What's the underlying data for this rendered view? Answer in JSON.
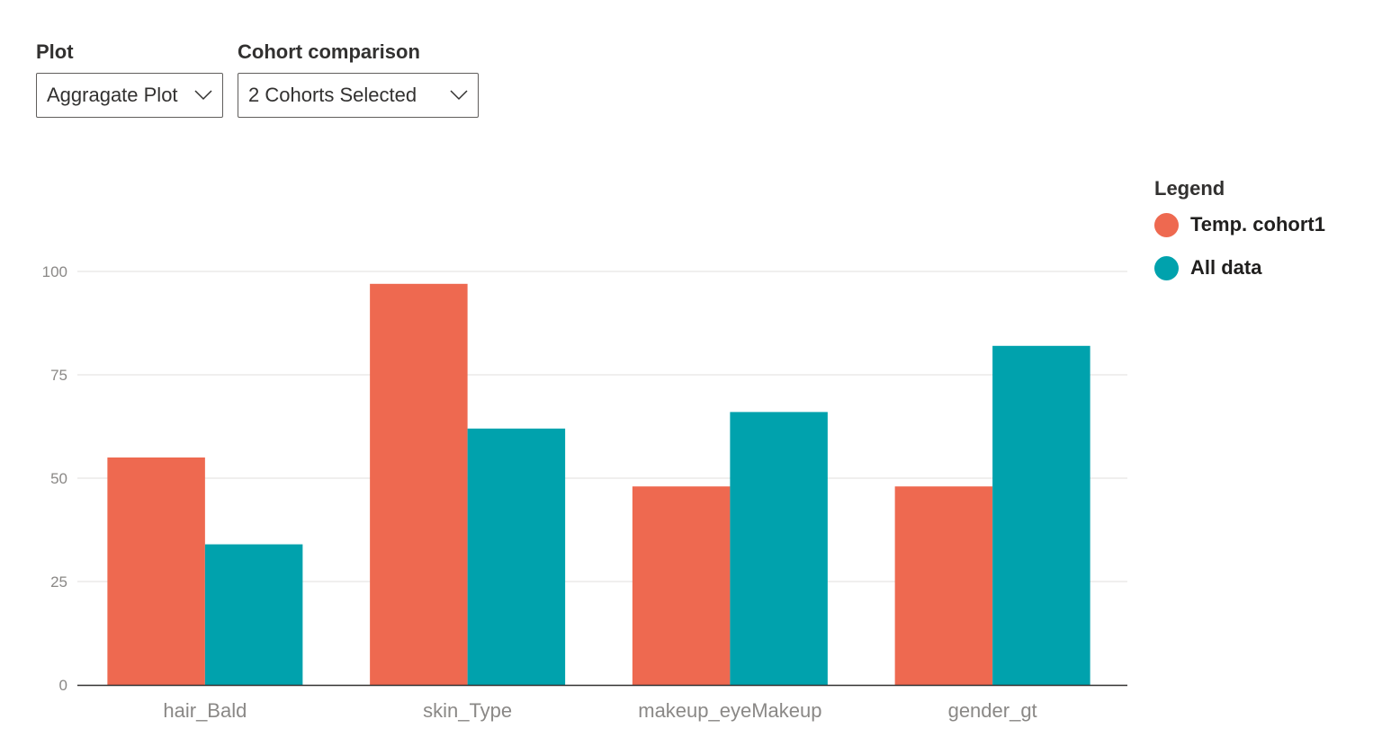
{
  "controls": {
    "plot": {
      "label": "Plot",
      "value": "Aggragate Plot"
    },
    "cohort": {
      "label": "Cohort comparison",
      "value": "2 Cohorts Selected"
    }
  },
  "legend": {
    "title": "Legend",
    "items": [
      {
        "label": "Temp. cohort1",
        "color": "#ee6950"
      },
      {
        "label": "All data",
        "color": "#00a2ad"
      }
    ]
  },
  "chart_data": {
    "type": "bar",
    "categories": [
      "hair_Bald",
      "skin_Type",
      "makeup_eyeMakeup",
      "gender_gt"
    ],
    "series": [
      {
        "name": "Temp. cohort1",
        "color": "#ee6950",
        "values": [
          55,
          97,
          48,
          48
        ]
      },
      {
        "name": "All data",
        "color": "#00a2ad",
        "values": [
          34,
          62,
          66,
          82
        ]
      }
    ],
    "yticks": [
      "0",
      "25",
      "50",
      "75",
      "100"
    ],
    "ylim": [
      0,
      100
    ],
    "grid": true,
    "legend_position": "top-right"
  }
}
